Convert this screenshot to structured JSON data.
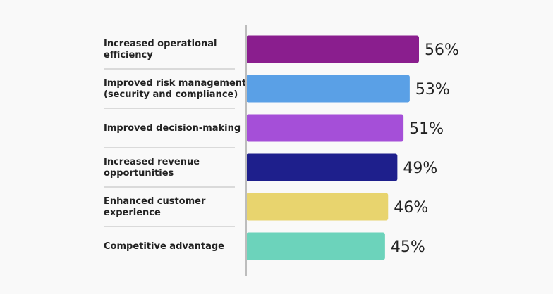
{
  "chart_data": {
    "type": "bar",
    "orientation": "horizontal",
    "title": "",
    "xlabel": "",
    "ylabel": "",
    "xlim": [
      0,
      100
    ],
    "grid": false,
    "legend": "none",
    "value_suffix": "%",
    "categories": [
      "Increased operational efficiency",
      "Improved risk management (security and compliance)",
      "Improved decision-making",
      "Increased revenue opportunities",
      "Enhanced customer experience",
      "Competitive advantage"
    ],
    "label_lines": [
      [
        "Increased operational",
        "efficiency"
      ],
      [
        "Improved risk management",
        "(security and compliance)"
      ],
      [
        "Improved decision-making"
      ],
      [
        "Increased revenue",
        "opportunities"
      ],
      [
        "Enhanced customer",
        "experience"
      ],
      [
        "Competitive advantage"
      ]
    ],
    "values": [
      56,
      53,
      51,
      49,
      46,
      45
    ],
    "value_labels": [
      "56%",
      "53%",
      "51%",
      "49%",
      "46%",
      "45%"
    ],
    "colors": [
      "#8a1e8e",
      "#5aa0e6",
      "#a54fd8",
      "#1e1f8c",
      "#e8d46e",
      "#6cd3bb"
    ]
  },
  "style": {
    "background": "#f9f9f9",
    "axis_color": "#bdbdbd",
    "separator_color": "#cfcfcf",
    "text_color": "#222222"
  }
}
